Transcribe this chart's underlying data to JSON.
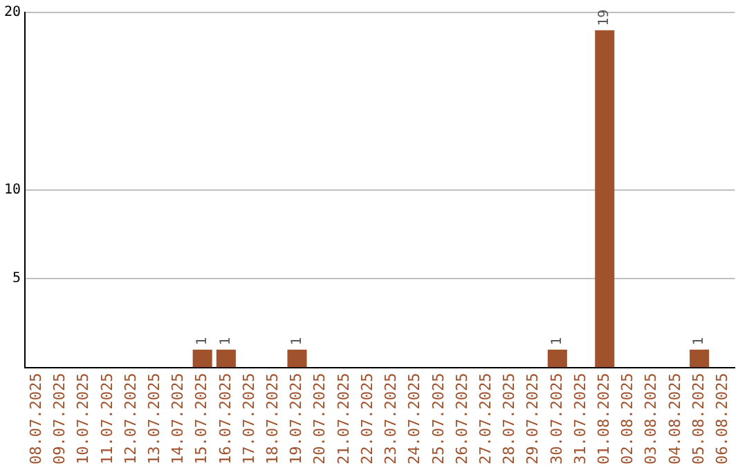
{
  "chart_data": {
    "type": "bar",
    "categories": [
      "08.07.2025",
      "09.07.2025",
      "10.07.2025",
      "11.07.2025",
      "12.07.2025",
      "13.07.2025",
      "14.07.2025",
      "15.07.2025",
      "16.07.2025",
      "17.07.2025",
      "18.07.2025",
      "19.07.2025",
      "20.07.2025",
      "21.07.2025",
      "22.07.2025",
      "23.07.2025",
      "24.07.2025",
      "25.07.2025",
      "26.07.2025",
      "27.07.2025",
      "28.07.2025",
      "29.07.2025",
      "30.07.2025",
      "31.07.2025",
      "01.08.2025",
      "02.08.2025",
      "03.08.2025",
      "04.08.2025",
      "05.08.2025",
      "06.08.2025"
    ],
    "values": [
      0,
      0,
      0,
      0,
      0,
      0,
      0,
      1,
      1,
      0,
      0,
      1,
      0,
      0,
      0,
      0,
      0,
      0,
      0,
      0,
      0,
      0,
      1,
      0,
      19,
      0,
      0,
      0,
      1,
      0
    ],
    "value_labels": [
      null,
      null,
      null,
      null,
      null,
      null,
      null,
      "1",
      "1",
      null,
      null,
      "1",
      null,
      null,
      null,
      null,
      null,
      null,
      null,
      null,
      null,
      null,
      "1",
      null,
      "19",
      null,
      null,
      null,
      "1",
      null
    ],
    "color": "#a0522d",
    "ylim": [
      0,
      20
    ],
    "yticks": [
      5,
      10,
      20
    ],
    "grid": "y",
    "legend": false
  }
}
